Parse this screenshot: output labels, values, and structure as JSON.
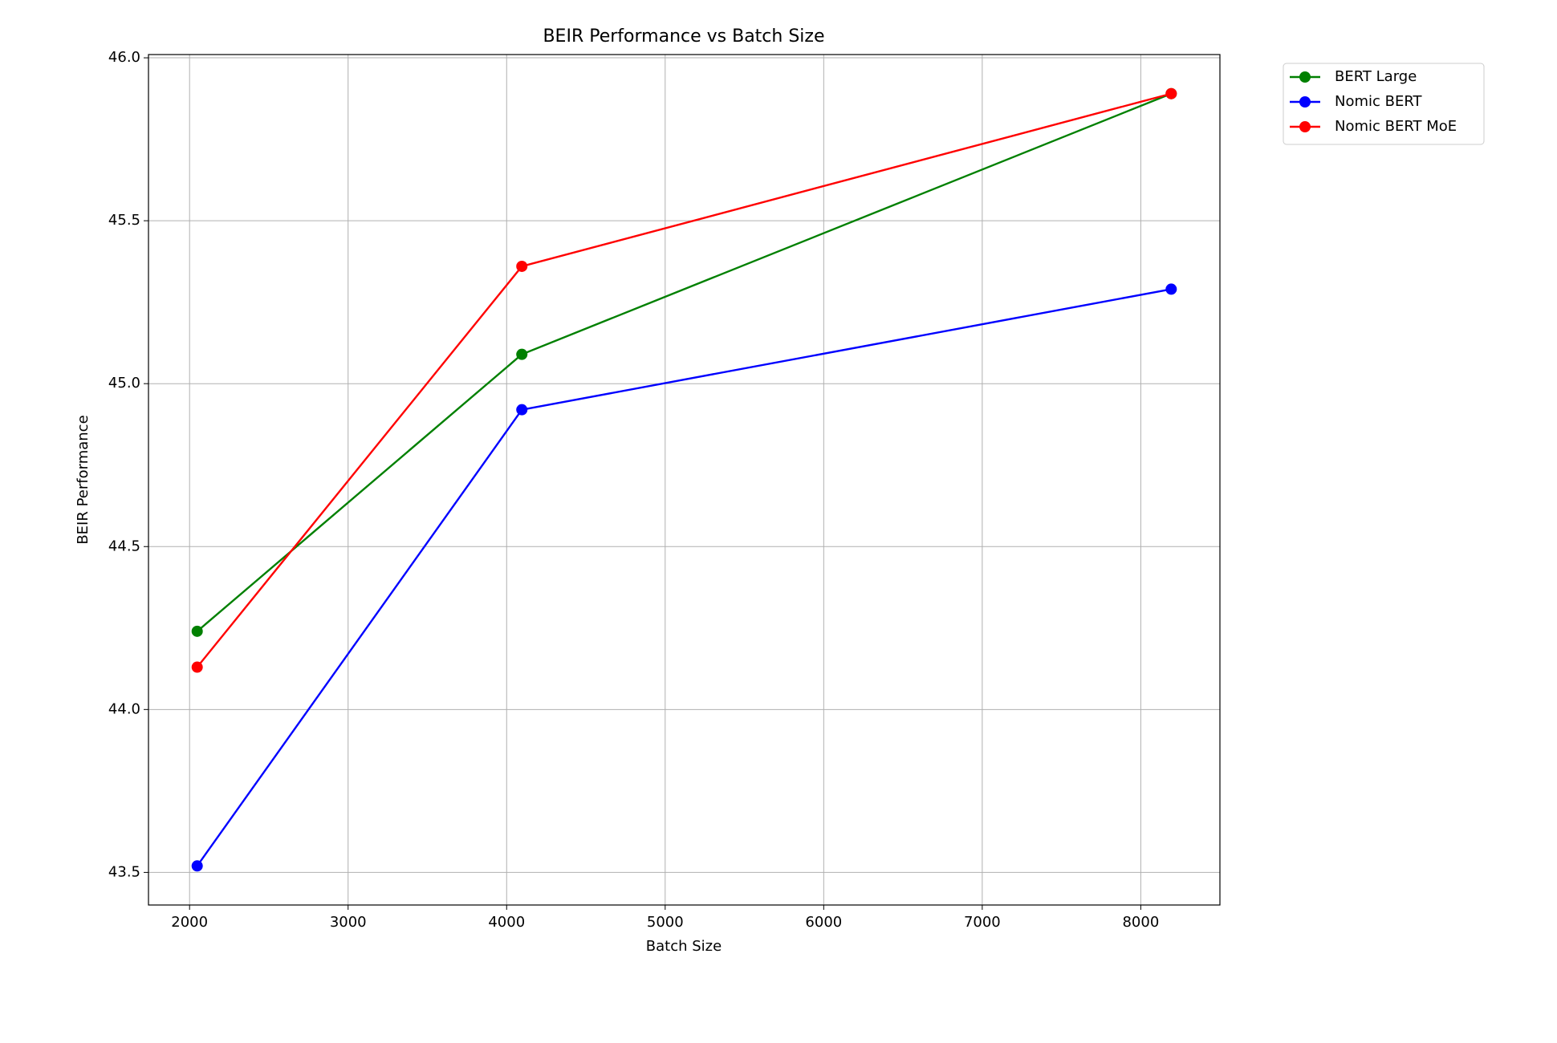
{
  "chart_data": {
    "type": "line",
    "title": "BEIR Performance vs Batch Size",
    "x_label": "Batch Size",
    "y_label": "BEIR Performance",
    "x": [
      2048,
      4096,
      8192
    ],
    "series": [
      {
        "name": "BERT Large",
        "color": "#008000",
        "values": [
          44.24,
          45.09,
          45.89
        ]
      },
      {
        "name": "Nomic BERT",
        "color": "#0000ff",
        "values": [
          43.52,
          44.92,
          45.29
        ]
      },
      {
        "name": "Nomic BERT MoE",
        "color": "#ff0000",
        "values": [
          44.13,
          45.36,
          45.89
        ]
      }
    ],
    "xlim": [
      1740.8,
      8499.2
    ],
    "xticks": [
      2000,
      3000,
      4000,
      5000,
      6000,
      7000,
      8000
    ],
    "ylim": [
      43.4,
      46.01
    ],
    "yticks": [
      43.5,
      {
        "value": 44,
        "label": "44.0"
      },
      44.5,
      {
        "value": 45,
        "label": "45.0"
      },
      45.5,
      {
        "value": 46,
        "label": "46.0"
      }
    ],
    "grid": true,
    "legend": "outside-upper-right"
  }
}
